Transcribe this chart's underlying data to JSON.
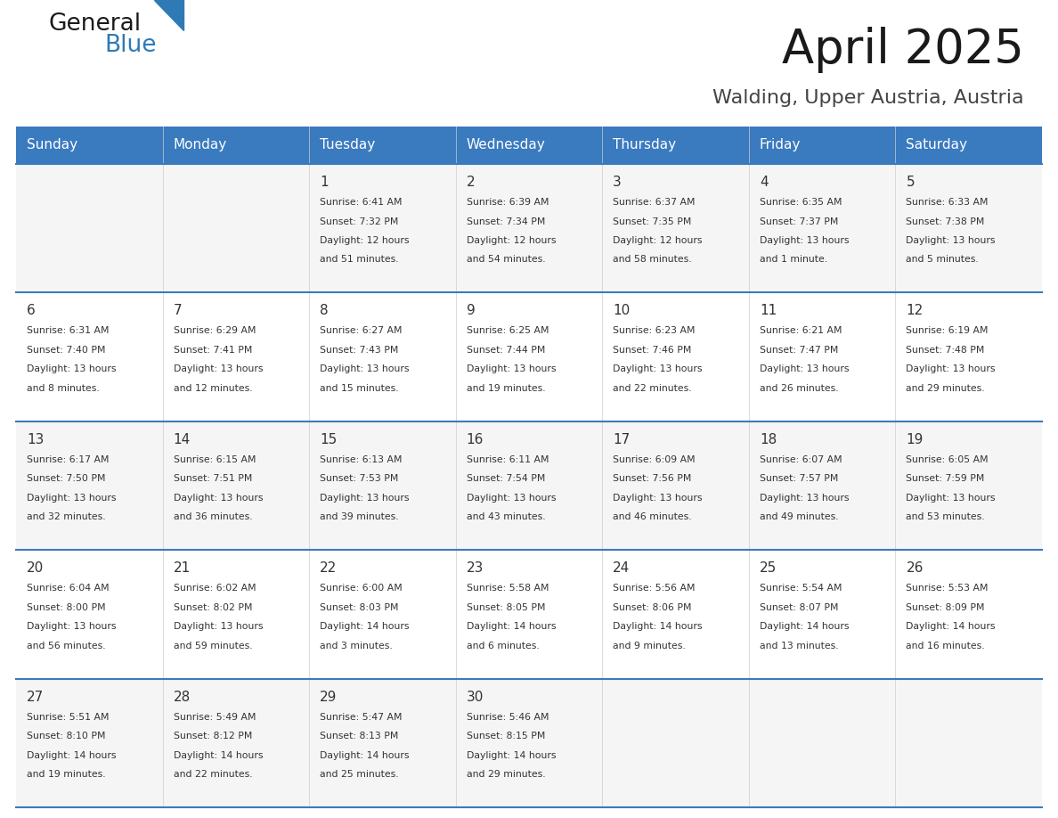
{
  "title": "April 2025",
  "subtitle": "Walding, Upper Austria, Austria",
  "header_bg_color": "#3a7abf",
  "header_text_color": "#ffffff",
  "days_of_week": [
    "Sunday",
    "Monday",
    "Tuesday",
    "Wednesday",
    "Thursday",
    "Friday",
    "Saturday"
  ],
  "bg_color": "#ffffff",
  "text_color": "#333333",
  "line_color": "#3a7abf",
  "num_color": "#333333",
  "calendar_data": [
    [
      {
        "day": null,
        "info": null
      },
      {
        "day": null,
        "info": null
      },
      {
        "day": 1,
        "info": "Sunrise: 6:41 AM\nSunset: 7:32 PM\nDaylight: 12 hours\nand 51 minutes."
      },
      {
        "day": 2,
        "info": "Sunrise: 6:39 AM\nSunset: 7:34 PM\nDaylight: 12 hours\nand 54 minutes."
      },
      {
        "day": 3,
        "info": "Sunrise: 6:37 AM\nSunset: 7:35 PM\nDaylight: 12 hours\nand 58 minutes."
      },
      {
        "day": 4,
        "info": "Sunrise: 6:35 AM\nSunset: 7:37 PM\nDaylight: 13 hours\nand 1 minute."
      },
      {
        "day": 5,
        "info": "Sunrise: 6:33 AM\nSunset: 7:38 PM\nDaylight: 13 hours\nand 5 minutes."
      }
    ],
    [
      {
        "day": 6,
        "info": "Sunrise: 6:31 AM\nSunset: 7:40 PM\nDaylight: 13 hours\nand 8 minutes."
      },
      {
        "day": 7,
        "info": "Sunrise: 6:29 AM\nSunset: 7:41 PM\nDaylight: 13 hours\nand 12 minutes."
      },
      {
        "day": 8,
        "info": "Sunrise: 6:27 AM\nSunset: 7:43 PM\nDaylight: 13 hours\nand 15 minutes."
      },
      {
        "day": 9,
        "info": "Sunrise: 6:25 AM\nSunset: 7:44 PM\nDaylight: 13 hours\nand 19 minutes."
      },
      {
        "day": 10,
        "info": "Sunrise: 6:23 AM\nSunset: 7:46 PM\nDaylight: 13 hours\nand 22 minutes."
      },
      {
        "day": 11,
        "info": "Sunrise: 6:21 AM\nSunset: 7:47 PM\nDaylight: 13 hours\nand 26 minutes."
      },
      {
        "day": 12,
        "info": "Sunrise: 6:19 AM\nSunset: 7:48 PM\nDaylight: 13 hours\nand 29 minutes."
      }
    ],
    [
      {
        "day": 13,
        "info": "Sunrise: 6:17 AM\nSunset: 7:50 PM\nDaylight: 13 hours\nand 32 minutes."
      },
      {
        "day": 14,
        "info": "Sunrise: 6:15 AM\nSunset: 7:51 PM\nDaylight: 13 hours\nand 36 minutes."
      },
      {
        "day": 15,
        "info": "Sunrise: 6:13 AM\nSunset: 7:53 PM\nDaylight: 13 hours\nand 39 minutes."
      },
      {
        "day": 16,
        "info": "Sunrise: 6:11 AM\nSunset: 7:54 PM\nDaylight: 13 hours\nand 43 minutes."
      },
      {
        "day": 17,
        "info": "Sunrise: 6:09 AM\nSunset: 7:56 PM\nDaylight: 13 hours\nand 46 minutes."
      },
      {
        "day": 18,
        "info": "Sunrise: 6:07 AM\nSunset: 7:57 PM\nDaylight: 13 hours\nand 49 minutes."
      },
      {
        "day": 19,
        "info": "Sunrise: 6:05 AM\nSunset: 7:59 PM\nDaylight: 13 hours\nand 53 minutes."
      }
    ],
    [
      {
        "day": 20,
        "info": "Sunrise: 6:04 AM\nSunset: 8:00 PM\nDaylight: 13 hours\nand 56 minutes."
      },
      {
        "day": 21,
        "info": "Sunrise: 6:02 AM\nSunset: 8:02 PM\nDaylight: 13 hours\nand 59 minutes."
      },
      {
        "day": 22,
        "info": "Sunrise: 6:00 AM\nSunset: 8:03 PM\nDaylight: 14 hours\nand 3 minutes."
      },
      {
        "day": 23,
        "info": "Sunrise: 5:58 AM\nSunset: 8:05 PM\nDaylight: 14 hours\nand 6 minutes."
      },
      {
        "day": 24,
        "info": "Sunrise: 5:56 AM\nSunset: 8:06 PM\nDaylight: 14 hours\nand 9 minutes."
      },
      {
        "day": 25,
        "info": "Sunrise: 5:54 AM\nSunset: 8:07 PM\nDaylight: 14 hours\nand 13 minutes."
      },
      {
        "day": 26,
        "info": "Sunrise: 5:53 AM\nSunset: 8:09 PM\nDaylight: 14 hours\nand 16 minutes."
      }
    ],
    [
      {
        "day": 27,
        "info": "Sunrise: 5:51 AM\nSunset: 8:10 PM\nDaylight: 14 hours\nand 19 minutes."
      },
      {
        "day": 28,
        "info": "Sunrise: 5:49 AM\nSunset: 8:12 PM\nDaylight: 14 hours\nand 22 minutes."
      },
      {
        "day": 29,
        "info": "Sunrise: 5:47 AM\nSunset: 8:13 PM\nDaylight: 14 hours\nand 25 minutes."
      },
      {
        "day": 30,
        "info": "Sunrise: 5:46 AM\nSunset: 8:15 PM\nDaylight: 14 hours\nand 29 minutes."
      },
      {
        "day": null,
        "info": null
      },
      {
        "day": null,
        "info": null
      },
      {
        "day": null,
        "info": null
      }
    ]
  ]
}
